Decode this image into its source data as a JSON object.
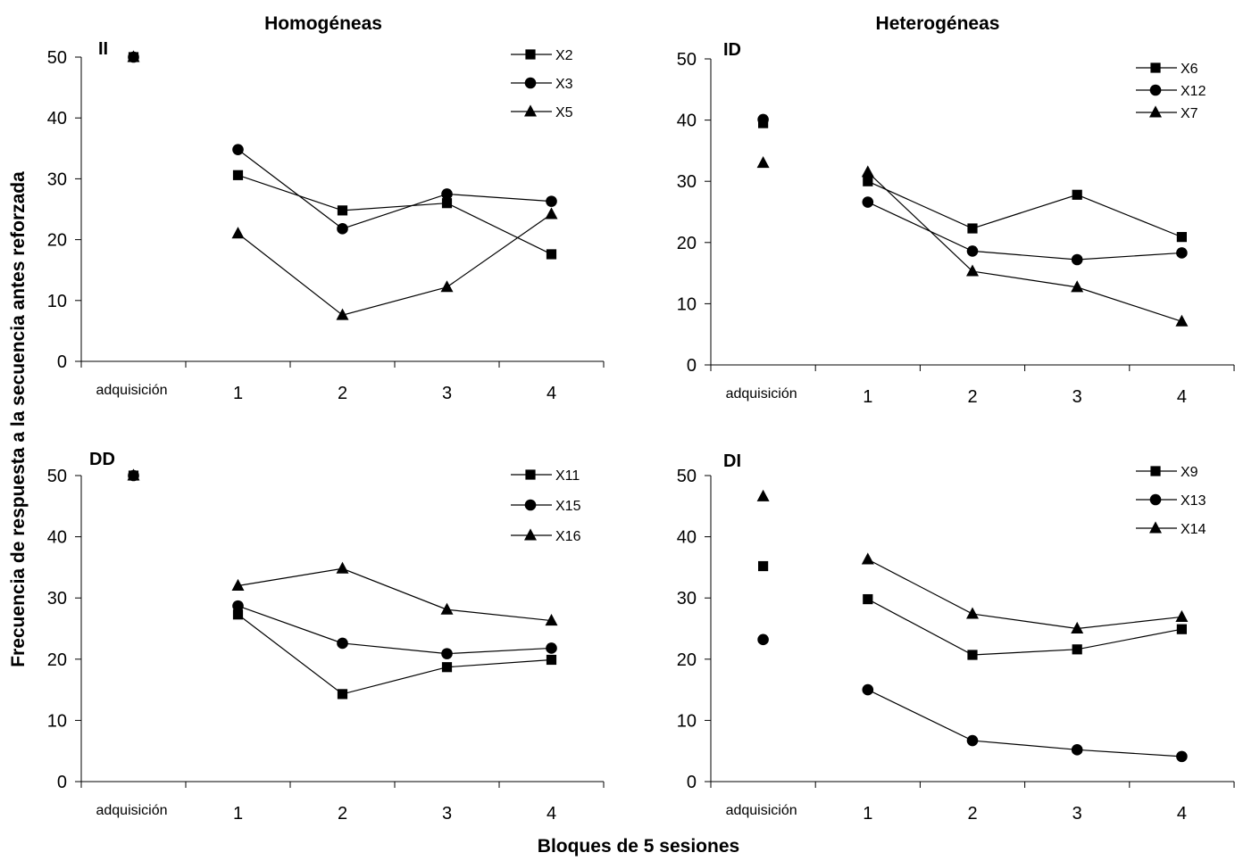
{
  "figure": {
    "col_titles": [
      "Homogéneas",
      "Heterogéneas"
    ],
    "ylabel": "Frecuencia de respuesta a la secuencia antes reforzada",
    "xlabel": "Bloques de 5 sesiones"
  },
  "chart_data": [
    {
      "type": "line",
      "label": "II",
      "categories": [
        "adquisición",
        "1",
        "2",
        "3",
        "4"
      ],
      "ylim": [
        0,
        50
      ],
      "yticks": [
        0,
        10,
        20,
        30,
        40,
        50
      ],
      "series": [
        {
          "name": "X2",
          "marker": "square",
          "values": [
            50,
            30.6,
            24.8,
            26,
            17.6
          ]
        },
        {
          "name": "X3",
          "marker": "circle",
          "values": [
            50,
            34.8,
            21.8,
            27.5,
            26.3
          ]
        },
        {
          "name": "X5",
          "marker": "triangle",
          "values": [
            50,
            21,
            7.6,
            12.2,
            24.2
          ]
        }
      ]
    },
    {
      "type": "line",
      "label": "ID",
      "categories": [
        "adquisición",
        "1",
        "2",
        "3",
        "4"
      ],
      "ylim": [
        0,
        50
      ],
      "yticks": [
        0,
        10,
        20,
        30,
        40,
        50
      ],
      "series": [
        {
          "name": "X6",
          "marker": "square",
          "values": [
            39.5,
            30,
            22.3,
            27.8,
            20.9
          ]
        },
        {
          "name": "X12",
          "marker": "circle",
          "values": [
            40.1,
            26.6,
            18.6,
            17.2,
            18.3
          ]
        },
        {
          "name": "X7",
          "marker": "triangle",
          "values": [
            33,
            31.5,
            15.3,
            12.7,
            7.1
          ]
        }
      ]
    },
    {
      "type": "line",
      "label": "DD",
      "categories": [
        "adquisición",
        "1",
        "2",
        "3",
        "4"
      ],
      "ylim": [
        0,
        50
      ],
      "yticks": [
        0,
        10,
        20,
        30,
        40,
        50
      ],
      "series": [
        {
          "name": "X11",
          "marker": "square",
          "values": [
            50,
            27.3,
            14.3,
            18.7,
            19.9
          ]
        },
        {
          "name": "X15",
          "marker": "circle",
          "values": [
            50,
            28.7,
            22.6,
            20.9,
            21.8
          ]
        },
        {
          "name": "X16",
          "marker": "triangle",
          "values": [
            50,
            32,
            34.8,
            28.1,
            26.3
          ]
        }
      ]
    },
    {
      "type": "line",
      "label": "DI",
      "categories": [
        "adquisición",
        "1",
        "2",
        "3",
        "4"
      ],
      "ylim": [
        0,
        50
      ],
      "yticks": [
        0,
        10,
        20,
        30,
        40,
        50
      ],
      "series": [
        {
          "name": "X9",
          "marker": "square",
          "values": [
            35.2,
            29.8,
            20.7,
            21.6,
            24.9
          ]
        },
        {
          "name": "X13",
          "marker": "circle",
          "values": [
            23.2,
            15,
            6.7,
            5.2,
            4.1
          ]
        },
        {
          "name": "X14",
          "marker": "triangle",
          "values": [
            46.6,
            36.3,
            27.4,
            25,
            26.9
          ]
        }
      ]
    }
  ]
}
